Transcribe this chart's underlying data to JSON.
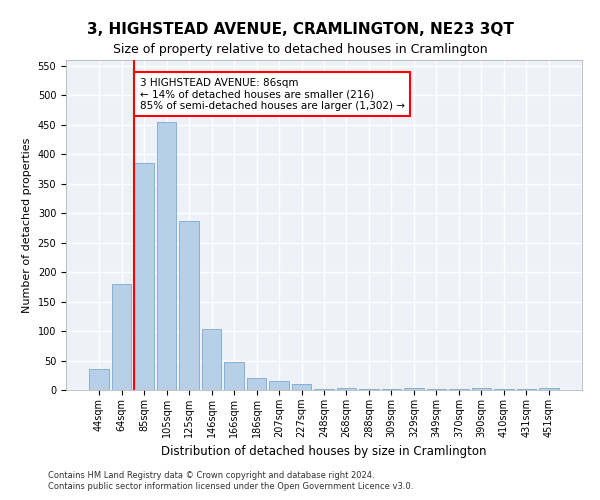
{
  "title": "3, HIGHSTEAD AVENUE, CRAMLINGTON, NE23 3QT",
  "subtitle": "Size of property relative to detached houses in Cramlington",
  "xlabel": "Distribution of detached houses by size in Cramlington",
  "ylabel": "Number of detached properties",
  "footnote1": "Contains HM Land Registry data © Crown copyright and database right 2024.",
  "footnote2": "Contains public sector information licensed under the Open Government Licence v3.0.",
  "categories": [
    "44sqm",
    "64sqm",
    "85sqm",
    "105sqm",
    "125sqm",
    "146sqm",
    "166sqm",
    "186sqm",
    "207sqm",
    "227sqm",
    "248sqm",
    "268sqm",
    "288sqm",
    "309sqm",
    "329sqm",
    "349sqm",
    "370sqm",
    "390sqm",
    "410sqm",
    "431sqm",
    "451sqm"
  ],
  "values": [
    35,
    180,
    385,
    455,
    287,
    103,
    48,
    20,
    15,
    10,
    1,
    4,
    1,
    1,
    4,
    1,
    1,
    4,
    1,
    1,
    4
  ],
  "bar_color": "#b8cfe8",
  "bar_edge_color": "#7aaace",
  "redline_bin_index": 2,
  "annotation_text": "3 HIGHSTEAD AVENUE: 86sqm\n← 14% of detached houses are smaller (216)\n85% of semi-detached houses are larger (1,302) →",
  "annotation_box_color": "white",
  "annotation_box_edge_color": "red",
  "redline_color": "red",
  "ylim": [
    0,
    560
  ],
  "yticks": [
    0,
    50,
    100,
    150,
    200,
    250,
    300,
    350,
    400,
    450,
    500,
    550
  ],
  "title_fontsize": 11,
  "subtitle_fontsize": 9,
  "xlabel_fontsize": 8.5,
  "ylabel_fontsize": 8,
  "tick_fontsize": 7,
  "annotation_fontsize": 7.5,
  "bg_color": "#eef2f8",
  "grid_color": "white"
}
